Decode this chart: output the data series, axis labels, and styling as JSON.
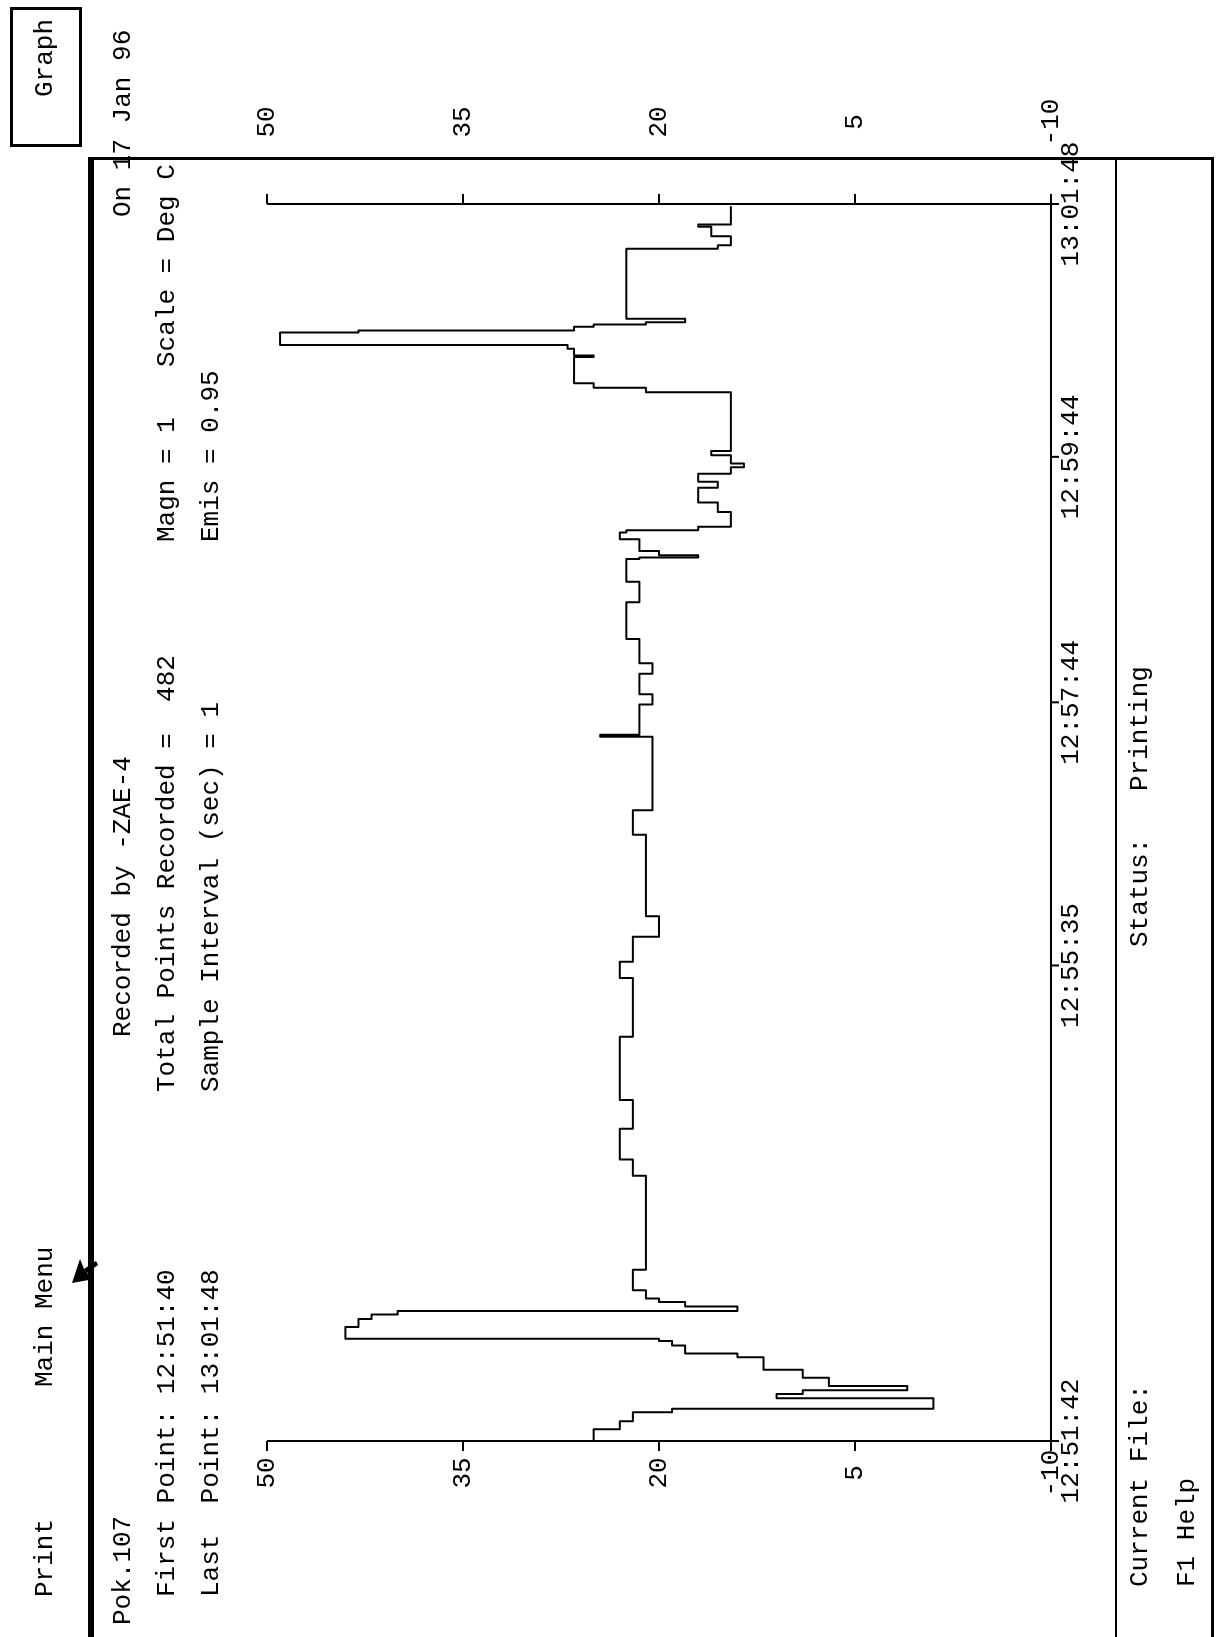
{
  "chart_data": {
    "type": "step",
    "annotations": [
      "Print",
      "Main Menu",
      "Graph",
      "Pok.107",
      "Recorded by -ZAE-4",
      "On 17 Jan 96",
      "First Point: 12:51:40",
      "Total Points Recorded =  482",
      "Magn = 1",
      "Scale = Deg C",
      "Last  Point: 13:01:48",
      "Sample Interval (sec) = 1",
      "Emis = 0.95",
      "Current File:",
      "F1 Help",
      "Status:   Printing"
    ],
    "series": [
      {
        "color": "#000000",
        "x": [
          25,
          23,
          22,
          19,
          -1,
          11,
          9,
          1,
          7,
          9,
          12,
          14,
          18,
          19,
          20,
          44,
          43,
          42,
          40,
          14,
          18,
          20,
          21,
          22,
          21,
          22,
          23,
          22,
          23,
          22,
          23,
          22,
          20,
          21,
          22,
          20.5,
          24.5,
          21.5,
          20.5,
          21.5,
          20.5,
          21.5,
          22.5,
          21.5,
          22.5,
          21.5,
          17,
          20,
          21.5,
          23,
          22.5,
          17,
          14.5,
          15.5,
          17,
          15.5,
          17,
          14.5,
          13.5,
          14.5,
          16,
          14.5,
          21,
          25,
          26.5,
          25,
          26.5,
          27,
          49,
          43,
          26.5,
          25,
          21,
          18,
          22.5,
          15.5,
          14.5,
          16,
          17,
          14.5,
          14.5
        ],
        "values": [
          12.8617,
          12.8633,
          12.8644,
          12.8656,
          12.8661,
          12.8675,
          12.8681,
          12.8686,
          12.8692,
          12.8703,
          12.8714,
          12.8731,
          12.8736,
          12.8747,
          12.8753,
          12.8756,
          12.8772,
          12.8783,
          12.8789,
          12.8794,
          12.88,
          12.8806,
          12.8811,
          12.8822,
          12.885,
          12.8978,
          12.9,
          12.9042,
          12.9081,
          12.9167,
          12.9247,
          12.9269,
          12.9303,
          12.9331,
          12.9442,
          12.9475,
          12.9575,
          12.9578,
          12.9619,
          12.9633,
          12.9661,
          12.9675,
          12.9708,
          12.9758,
          12.9786,
          12.9817,
          12.9819,
          12.9822,
          12.9828,
          12.9844,
          12.9853,
          12.9856,
          12.9861,
          12.9881,
          12.9894,
          12.9914,
          12.9922,
          12.9933,
          12.9942,
          12.9947,
          12.9958,
          12.9964,
          13.0044,
          13.005,
          13.0056,
          13.0092,
          13.0094,
          13.0103,
          13.0108,
          13.0125,
          13.0128,
          13.0133,
          13.0136,
          13.0139,
          13.0144,
          13.0239,
          13.0244,
          13.0256,
          13.0269,
          13.0272,
          13.0297
        ]
      }
    ],
    "xlim": [
      50,
      -10
    ],
    "xticks": [
      50,
      35,
      20,
      5,
      -10
    ],
    "x2lim": [
      50,
      -10
    ],
    "x2ticks": [
      50,
      35,
      20,
      5,
      -10
    ],
    "ylim": [
      12.8617,
      13.03
    ],
    "yticks": [
      {
        "value": 12.8617,
        "label": "12:51:42"
      },
      {
        "value": 12.9264,
        "label": "12:55:35"
      },
      {
        "value": 12.9622,
        "label": "12:57:44"
      },
      {
        "value": 12.9956,
        "label": "12:59:44"
      },
      {
        "value": 13.03,
        "label": "13:01:48"
      }
    ],
    "marker": "none",
    "line_style": "solid",
    "grid": false,
    "legend": false
  }
}
